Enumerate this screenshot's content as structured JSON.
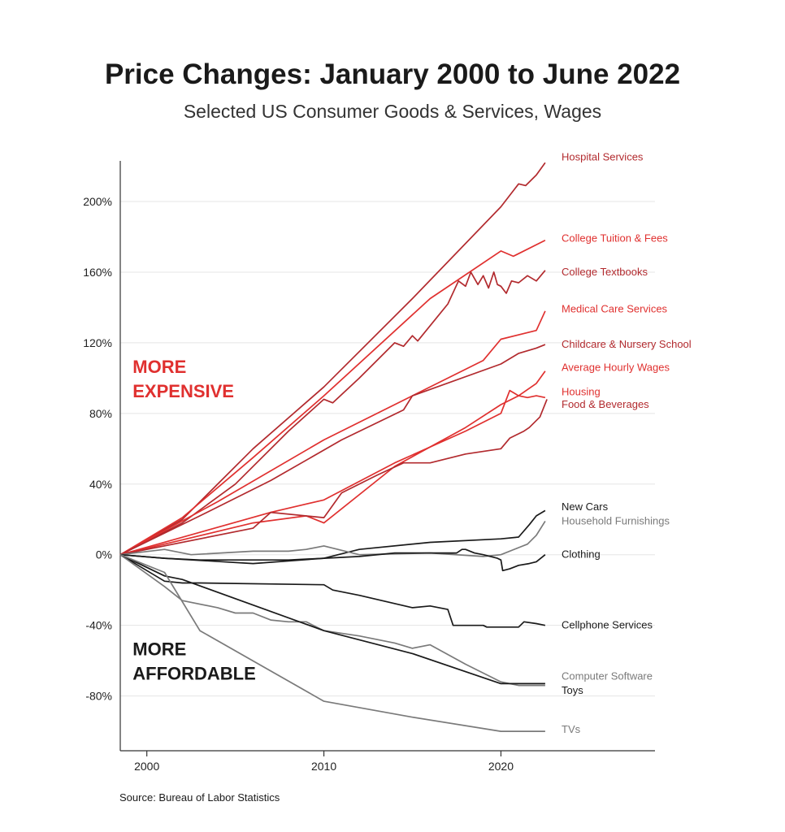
{
  "title": "Price Changes: January 2000 to June 2022",
  "subtitle": "Selected US Consumer Goods & Services, Wages",
  "source": "Source: Bureau of Labor Statistics",
  "colors": {
    "dark_red": "#b22a2e",
    "red": "#e0302f",
    "black": "#1a1a1a",
    "gray": "#7a7a7a",
    "grid": "#e5e5e5"
  },
  "chart_data": {
    "type": "line",
    "title": "Price Changes: January 2000 to June 2022",
    "subtitle": "Selected US Consumer Goods & Services, Wages",
    "xlabel": "",
    "ylabel": "",
    "xlim": [
      1998.5,
      2028.7
    ],
    "ylim": [
      -111,
      223
    ],
    "x_ticks": [
      2000,
      2010,
      2020
    ],
    "x_tick_labels": [
      "2000",
      "2010",
      "2020"
    ],
    "y_ticks": [
      200,
      160,
      120,
      80,
      40,
      0,
      -40,
      -80
    ],
    "y_tick_labels": [
      "200%",
      "160%",
      "120%",
      "80%",
      "40%",
      "0%",
      "-40%",
      "-80%"
    ],
    "grid": "horizontal",
    "annotations": [
      {
        "lines": [
          "MORE",
          "EXPENSIVE"
        ],
        "color": "#e0302f",
        "x": 1999.2,
        "y": 103
      },
      {
        "lines": [
          "MORE",
          "AFFORDABLE"
        ],
        "color": "#1a1a1a",
        "x": 1999.2,
        "y": -57
      }
    ],
    "series": [
      {
        "name": "Hospital Services",
        "color": "#b22a2e",
        "label_y": 225,
        "points": [
          [
            1998.5,
            0
          ],
          [
            2002,
            20
          ],
          [
            2006,
            60
          ],
          [
            2010,
            95
          ],
          [
            2015,
            145
          ],
          [
            2020,
            197
          ],
          [
            2021,
            210
          ],
          [
            2021.4,
            209
          ],
          [
            2022,
            215
          ],
          [
            2022.5,
            222
          ]
        ]
      },
      {
        "name": "College Tuition & Fees",
        "color": "#e0302f",
        "label_y": 179,
        "points": [
          [
            1998.5,
            0
          ],
          [
            2002,
            21
          ],
          [
            2006,
            55
          ],
          [
            2010,
            90
          ],
          [
            2016,
            145
          ],
          [
            2020,
            172
          ],
          [
            2020.7,
            169
          ],
          [
            2022.5,
            178
          ]
        ]
      },
      {
        "name": "College Textbooks",
        "color": "#b22a2e",
        "label_y": 160,
        "points": [
          [
            1998.5,
            0
          ],
          [
            2002,
            18
          ],
          [
            2005,
            40
          ],
          [
            2008,
            70
          ],
          [
            2010,
            88
          ],
          [
            2010.5,
            86
          ],
          [
            2012,
            100
          ],
          [
            2014,
            120
          ],
          [
            2014.5,
            118
          ],
          [
            2015,
            124
          ],
          [
            2015.3,
            121
          ],
          [
            2017,
            142
          ],
          [
            2017.6,
            155
          ],
          [
            2018,
            152
          ],
          [
            2018.3,
            160
          ],
          [
            2018.7,
            153
          ],
          [
            2019,
            158
          ],
          [
            2019.3,
            151
          ],
          [
            2019.6,
            160
          ],
          [
            2019.8,
            153
          ],
          [
            2020,
            152
          ],
          [
            2020.3,
            148
          ],
          [
            2020.6,
            155
          ],
          [
            2021,
            154
          ],
          [
            2021.5,
            158
          ],
          [
            2022,
            155
          ],
          [
            2022.5,
            161
          ]
        ]
      },
      {
        "name": "Medical Care Services",
        "color": "#e0302f",
        "label_y": 139,
        "points": [
          [
            1998.5,
            0
          ],
          [
            2004,
            30
          ],
          [
            2010,
            65
          ],
          [
            2015,
            90
          ],
          [
            2019,
            110
          ],
          [
            2020,
            122
          ],
          [
            2022,
            127
          ],
          [
            2022.5,
            138
          ]
        ]
      },
      {
        "name": "Childcare & Nursery School",
        "color": "#b22a2e",
        "label_y": 119,
        "points": [
          [
            1998.5,
            0
          ],
          [
            2003,
            22
          ],
          [
            2007,
            42
          ],
          [
            2011,
            65
          ],
          [
            2014.5,
            82
          ],
          [
            2015,
            90
          ],
          [
            2020,
            108
          ],
          [
            2021,
            114
          ],
          [
            2022,
            117
          ],
          [
            2022.5,
            119
          ]
        ]
      },
      {
        "name": "Average Hourly Wages",
        "color": "#e0302f",
        "label_y": 106,
        "points": [
          [
            1998.5,
            0
          ],
          [
            2006,
            18
          ],
          [
            2009,
            22
          ],
          [
            2010,
            18
          ],
          [
            2014,
            50
          ],
          [
            2018,
            72
          ],
          [
            2020,
            85
          ],
          [
            2021,
            90
          ],
          [
            2022,
            97
          ],
          [
            2022.5,
            104
          ]
        ]
      },
      {
        "name": "Housing",
        "color": "#e0302f",
        "label_y": 92,
        "points": [
          [
            1998.5,
            0
          ],
          [
            2007,
            24
          ],
          [
            2010,
            31
          ],
          [
            2014,
            52
          ],
          [
            2018,
            70
          ],
          [
            2020,
            80
          ],
          [
            2020.5,
            93
          ],
          [
            2021,
            90
          ],
          [
            2021.5,
            89
          ],
          [
            2022,
            90
          ],
          [
            2022.5,
            89
          ]
        ]
      },
      {
        "name": "Food & Beverages",
        "color": "#b22a2e",
        "label_y": 85,
        "points": [
          [
            1998.5,
            0
          ],
          [
            2006,
            15
          ],
          [
            2007,
            24
          ],
          [
            2010,
            21
          ],
          [
            2011,
            35
          ],
          [
            2013,
            45
          ],
          [
            2014.5,
            52
          ],
          [
            2016,
            52
          ],
          [
            2018,
            57
          ],
          [
            2020,
            60
          ],
          [
            2020.5,
            66
          ],
          [
            2021.3,
            70
          ],
          [
            2021.6,
            72
          ],
          [
            2022.2,
            78
          ],
          [
            2022.6,
            88
          ]
        ]
      },
      {
        "name": "New Cars",
        "color": "#1a1a1a",
        "label_y": 27,
        "points": [
          [
            1998.5,
            0
          ],
          [
            2001,
            -2
          ],
          [
            2006,
            -5
          ],
          [
            2010,
            -2
          ],
          [
            2012,
            3
          ],
          [
            2016,
            7
          ],
          [
            2020,
            9
          ],
          [
            2021,
            10
          ],
          [
            2021.6,
            17
          ],
          [
            2022,
            22
          ],
          [
            2022.5,
            25
          ]
        ]
      },
      {
        "name": "Household Furnishings",
        "color": "#7a7a7a",
        "label_y": 19,
        "points": [
          [
            1998.5,
            0
          ],
          [
            2001,
            3
          ],
          [
            2002.5,
            0
          ],
          [
            2006,
            2
          ],
          [
            2008,
            2
          ],
          [
            2009,
            3
          ],
          [
            2010,
            5
          ],
          [
            2012,
            0
          ],
          [
            2016,
            1
          ],
          [
            2019,
            -1
          ],
          [
            2020,
            0
          ],
          [
            2021,
            4
          ],
          [
            2021.5,
            6
          ],
          [
            2022,
            11
          ],
          [
            2022.5,
            19
          ]
        ]
      },
      {
        "name": "Clothing",
        "color": "#1a1a1a",
        "label_y": 0,
        "points": [
          [
            1998.5,
            0
          ],
          [
            2001,
            -2
          ],
          [
            2003,
            -3
          ],
          [
            2008,
            -3
          ],
          [
            2010,
            -2
          ],
          [
            2012,
            -1
          ],
          [
            2014,
            1
          ],
          [
            2017.5,
            1
          ],
          [
            2017.8,
            3
          ],
          [
            2018,
            3
          ],
          [
            2018.5,
            1
          ],
          [
            2019,
            0
          ],
          [
            2019.8,
            -2
          ],
          [
            2020,
            -3
          ],
          [
            2020.1,
            -9
          ],
          [
            2020.5,
            -8
          ],
          [
            2021,
            -6
          ],
          [
            2021.6,
            -5
          ],
          [
            2022,
            -4
          ],
          [
            2022.5,
            0
          ]
        ]
      },
      {
        "name": "Cellphone Services",
        "color": "#1a1a1a",
        "label_y": -40,
        "points": [
          [
            1998.5,
            0
          ],
          [
            2001,
            -15
          ],
          [
            2002,
            -16
          ],
          [
            2003,
            -16
          ],
          [
            2010,
            -17
          ],
          [
            2010.5,
            -20
          ],
          [
            2012,
            -23
          ],
          [
            2015,
            -30
          ],
          [
            2016,
            -29
          ],
          [
            2017,
            -31
          ],
          [
            2017.3,
            -40
          ],
          [
            2019,
            -40
          ],
          [
            2019.2,
            -41
          ],
          [
            2021,
            -41
          ],
          [
            2021.3,
            -38
          ],
          [
            2022,
            -39
          ],
          [
            2022.5,
            -40
          ]
        ]
      },
      {
        "name": "Computer Software",
        "color": "#7a7a7a",
        "label_y": -69,
        "points": [
          [
            1998.5,
            0
          ],
          [
            2001,
            -18
          ],
          [
            2002,
            -26
          ],
          [
            2004,
            -30
          ],
          [
            2005,
            -33
          ],
          [
            2006,
            -33
          ],
          [
            2007,
            -37
          ],
          [
            2008,
            -38
          ],
          [
            2009,
            -38
          ],
          [
            2010,
            -43
          ],
          [
            2012,
            -46
          ],
          [
            2014,
            -50
          ],
          [
            2015,
            -53
          ],
          [
            2016,
            -51
          ],
          [
            2018,
            -62
          ],
          [
            2020,
            -72
          ],
          [
            2021,
            -74
          ],
          [
            2022.5,
            -74
          ]
        ]
      },
      {
        "name": "Toys",
        "color": "#1a1a1a",
        "label_y": -77,
        "points": [
          [
            1998.5,
            0
          ],
          [
            2001,
            -12
          ],
          [
            2002,
            -14
          ],
          [
            2010,
            -43
          ],
          [
            2015,
            -56
          ],
          [
            2020,
            -73
          ],
          [
            2022.5,
            -73
          ]
        ]
      },
      {
        "name": "TVs",
        "color": "#7a7a7a",
        "label_y": -99,
        "points": [
          [
            1998.5,
            0
          ],
          [
            2001,
            -10
          ],
          [
            2003,
            -43
          ],
          [
            2010,
            -83
          ],
          [
            2015,
            -92
          ],
          [
            2020,
            -100
          ],
          [
            2022.5,
            -100
          ]
        ]
      }
    ]
  }
}
